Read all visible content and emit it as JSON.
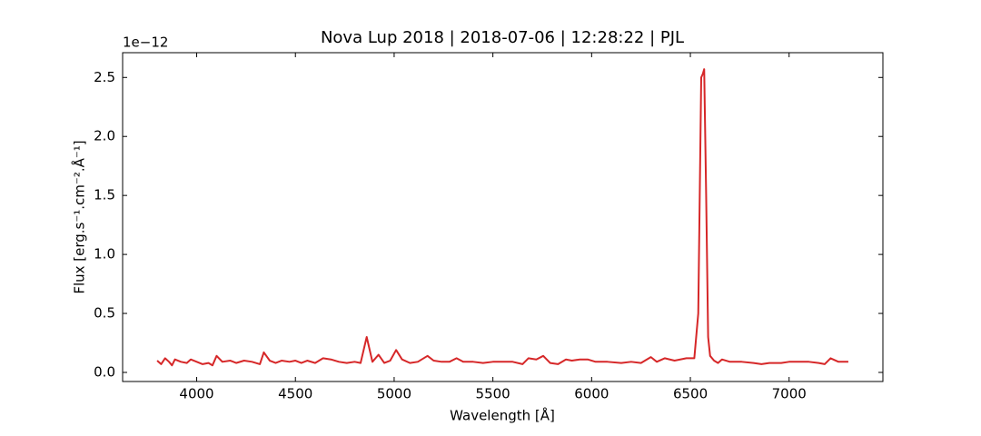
{
  "chart_data": {
    "type": "line",
    "title": "Nova Lup 2018 | 2018-07-06 | 12:28:22 | PJL",
    "xlabel": "Wavelength [Å]",
    "ylabel": "Flux [erg.s⁻¹.cm⁻².Å⁻¹]",
    "y_offset_label": "1e−12",
    "xlim": [
      3625,
      7475
    ],
    "xticks": [
      4000,
      4500,
      5000,
      5500,
      6000,
      6500,
      7000
    ],
    "ylim": [
      -0.077,
      2.71
    ],
    "yticks": [
      {
        "value": 0,
        "label": "0.0"
      },
      0.5,
      {
        "value": 1,
        "label": "1.0"
      },
      1.5,
      {
        "value": 2,
        "label": "2.0"
      },
      2.5
    ],
    "grid": false,
    "series": [
      {
        "color": "#d62728",
        "x": [
          3800,
          3820,
          3840,
          3860,
          3875,
          3890,
          3920,
          3950,
          3970,
          4000,
          4030,
          4060,
          4080,
          4101,
          4130,
          4170,
          4200,
          4240,
          4280,
          4320,
          4340,
          4370,
          4400,
          4430,
          4470,
          4500,
          4530,
          4560,
          4600,
          4640,
          4680,
          4720,
          4760,
          4800,
          4830,
          4861,
          4890,
          4921,
          4950,
          4980,
          5010,
          5040,
          5080,
          5120,
          5169,
          5200,
          5240,
          5280,
          5316,
          5350,
          5400,
          5450,
          5500,
          5550,
          5600,
          5650,
          5680,
          5720,
          5755,
          5790,
          5830,
          5870,
          5900,
          5940,
          5980,
          6020,
          6080,
          6150,
          6200,
          6250,
          6300,
          6330,
          6370,
          6420,
          6480,
          6520,
          6540,
          6555,
          6563,
          6570,
          6580,
          6590,
          6600,
          6620,
          6640,
          6660,
          6700,
          6760,
          6820,
          6860,
          6900,
          6960,
          7000,
          7060,
          7100,
          7150,
          7180,
          7210,
          7250,
          7300
        ],
        "values": [
          0.1,
          0.07,
          0.12,
          0.09,
          0.06,
          0.11,
          0.09,
          0.08,
          0.11,
          0.09,
          0.07,
          0.08,
          0.06,
          0.14,
          0.09,
          0.1,
          0.08,
          0.1,
          0.09,
          0.07,
          0.17,
          0.1,
          0.08,
          0.1,
          0.09,
          0.1,
          0.08,
          0.1,
          0.08,
          0.12,
          0.11,
          0.09,
          0.08,
          0.09,
          0.08,
          0.3,
          0.09,
          0.15,
          0.08,
          0.1,
          0.19,
          0.11,
          0.08,
          0.09,
          0.14,
          0.1,
          0.09,
          0.09,
          0.12,
          0.09,
          0.09,
          0.08,
          0.09,
          0.09,
          0.09,
          0.07,
          0.12,
          0.11,
          0.14,
          0.08,
          0.07,
          0.11,
          0.1,
          0.11,
          0.11,
          0.09,
          0.09,
          0.08,
          0.09,
          0.08,
          0.13,
          0.09,
          0.12,
          0.1,
          0.12,
          0.12,
          0.5,
          2.5,
          2.53,
          2.57,
          1.5,
          0.3,
          0.14,
          0.1,
          0.08,
          0.11,
          0.09,
          0.09,
          0.08,
          0.07,
          0.08,
          0.08,
          0.09,
          0.09,
          0.09,
          0.08,
          0.07,
          0.12,
          0.09,
          0.09
        ]
      }
    ]
  }
}
